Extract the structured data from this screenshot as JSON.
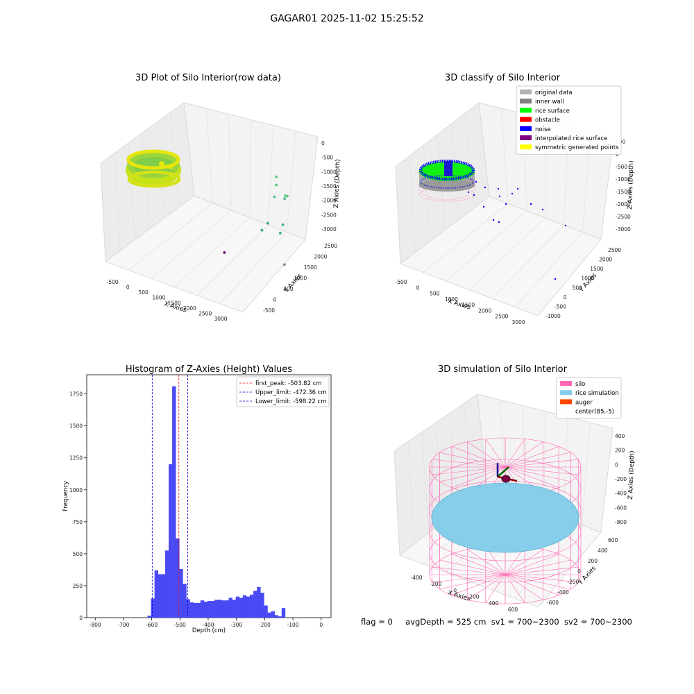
{
  "figure": {
    "suptitle": "GAGAR01 2025-11-02 15:25:52"
  },
  "status": {
    "flag": "flag = 0",
    "avg_depth": "avgDepth = 525 cm",
    "sv1": "sv1 = 700~2300",
    "sv2": "sv2 = 700~2300"
  },
  "chart_data": [
    {
      "id": "raw3d",
      "type": "scatter",
      "title": "3D Plot of Silo Interior(row data)",
      "xlabel": "X Axies",
      "ylabel": "Y Axies",
      "zlabel": "Z Axies (Depth)",
      "x_ticks": [
        "-500",
        "0",
        "500",
        "1000",
        "1500",
        "2000",
        "2500",
        "3000"
      ],
      "y_ticks": [
        "-500",
        "0",
        "500",
        "1000",
        "1500",
        "2000",
        "2500"
      ],
      "z_ticks": [
        "0",
        "-500",
        "-1000",
        "-1500",
        "-2000",
        "-2500",
        "-3000"
      ],
      "points": [
        {
          "x": 1080,
          "y": 2150,
          "z": -1320,
          "color": "#63c98a"
        },
        {
          "x": 1150,
          "y": 2100,
          "z": -1500,
          "color": "#63c98a"
        },
        {
          "x": 1300,
          "y": 1950,
          "z": -1700,
          "color": "#5bbf92"
        },
        {
          "x": 1700,
          "y": 1900,
          "z": -1600,
          "color": "#5bbf92"
        },
        {
          "x": 1850,
          "y": 1850,
          "z": -1450,
          "color": "#63c98a"
        },
        {
          "x": 2000,
          "y": 1700,
          "z": -1300,
          "color": "#6fcf88"
        },
        {
          "x": 1650,
          "y": 1550,
          "z": -2100,
          "color": "#3ea99a"
        },
        {
          "x": 1600,
          "y": 1450,
          "z": -2250,
          "color": "#3ea99a"
        },
        {
          "x": 2200,
          "y": 1500,
          "z": -1950,
          "color": "#4ab194"
        },
        {
          "x": 2400,
          "y": 1300,
          "z": -2000,
          "color": "#4ab194"
        },
        {
          "x": 2950,
          "y": 1000,
          "z": -2550,
          "color": "#8c8c8c"
        },
        {
          "x": 2850,
          "y": -300,
          "z": -1400,
          "color": "#7a1a7a"
        }
      ]
    },
    {
      "id": "classify3d",
      "type": "scatter",
      "title": "3D classify of Silo Interior",
      "xlabel": "X Axies",
      "ylabel": "Y Axies",
      "zlabel": "Z Axies (Depth)",
      "x_ticks": [
        "-500",
        "0",
        "500",
        "1000",
        "1500",
        "2000",
        "2500",
        "3000"
      ],
      "y_ticks": [
        "-1000",
        "-500",
        "0",
        "500",
        "1000",
        "1500",
        "2000",
        "2500"
      ],
      "z_ticks": [
        "500",
        "0",
        "-500",
        "-1000",
        "-1500",
        "-2000",
        "-2500",
        "-3000"
      ],
      "legend": [
        {
          "label": "original data",
          "color": "#b3b3b3"
        },
        {
          "label": "inner wall",
          "color": "#808080"
        },
        {
          "label": "rice surface",
          "color": "#00ff00"
        },
        {
          "label": "obstacle",
          "color": "#ff0000"
        },
        {
          "label": "noise",
          "color": "#0000ff"
        },
        {
          "label": "interpolated rice surface",
          "color": "#800080"
        },
        {
          "label": "symmetric generated points",
          "color": "#ffff00"
        }
      ]
    },
    {
      "id": "hist",
      "type": "bar",
      "title": "Histogram of Z-Axies (Height) Values",
      "xlabel": "Depth (cm)",
      "ylabel": "Frequency",
      "xlim": [
        -830,
        35
      ],
      "ylim": [
        0,
        1900
      ],
      "x_ticks": [
        -800,
        -700,
        -600,
        -500,
        -400,
        -300,
        -200,
        -100,
        0
      ],
      "y_ticks": [
        0,
        250,
        500,
        750,
        1000,
        1250,
        1500,
        1750
      ],
      "bin_start": -615,
      "bin_width": 12.5,
      "values": [
        15,
        150,
        370,
        340,
        340,
        525,
        1200,
        1810,
        620,
        380,
        265,
        145,
        120,
        115,
        115,
        135,
        125,
        130,
        130,
        140,
        140,
        135,
        135,
        155,
        140,
        165,
        155,
        175,
        165,
        180,
        210,
        240,
        195,
        95,
        40,
        50,
        20,
        10,
        75
      ],
      "bar_color": "#4a4af5",
      "vlines": [
        {
          "value": -503.82,
          "label": "first_peak: -503.82 cm",
          "color": "#ff0000"
        },
        {
          "value": -472.36,
          "label": "Upper_limit: -472.36 cm",
          "color": "#0000cc"
        },
        {
          "value": -598.22,
          "label": "Lower_limit: -598.22 cm",
          "color": "#0000cc"
        }
      ]
    },
    {
      "id": "sim3d",
      "type": "area",
      "title": "3D simulation of Silo Interior",
      "xlabel": "X Axies",
      "ylabel": "Y Axies",
      "zlabel": "Z Axies (Depth)",
      "x_ticks": [
        "-400",
        "-200",
        "0",
        "200",
        "400",
        "600"
      ],
      "y_ticks": [
        "-600",
        "-400",
        "-200",
        "0",
        "200",
        "400",
        "600"
      ],
      "z_ticks": [
        "400",
        "200",
        "0",
        "-200",
        "-400",
        "-600",
        "-800"
      ],
      "legend": [
        {
          "label": "silo",
          "color": "#ff69b4"
        },
        {
          "label": "rice simulation",
          "color": "#87ceeb"
        },
        {
          "label": "auger",
          "color": "#ff4500"
        },
        {
          "label": "center(85,-5)",
          "color": "#ffffff"
        }
      ]
    }
  ]
}
